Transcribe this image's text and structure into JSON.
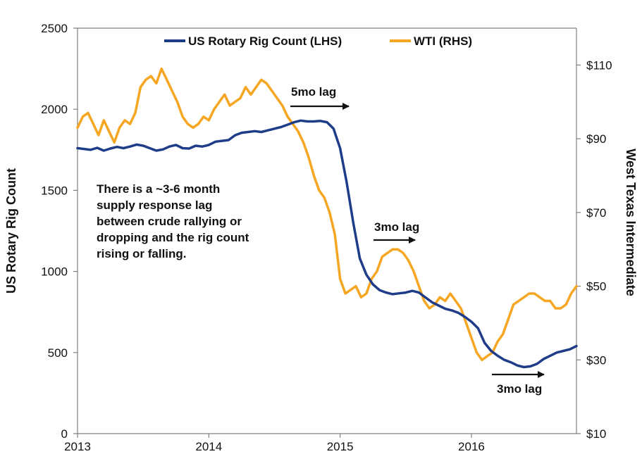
{
  "chart_data": {
    "type": "line",
    "title": "",
    "xlabel": "",
    "ylabel_left": "US Rotary Rig Count",
    "ylabel_right": "West Texas Intermediate",
    "x_ticks": [
      "2013",
      "2014",
      "2015",
      "2016"
    ],
    "xlim": [
      2013.0,
      2016.8
    ],
    "ylim_left": [
      0,
      2500
    ],
    "y_ticks_left": [
      "0",
      "500",
      "1000",
      "1500",
      "2000",
      "2500"
    ],
    "ylim_right": [
      10,
      120
    ],
    "y_ticks_right": [
      "$10",
      "$30",
      "$50",
      "$70",
      "$90",
      "$110"
    ],
    "y_ticks_right_values": [
      10,
      30,
      50,
      70,
      90,
      110
    ],
    "grid": false,
    "legend": {
      "placement": "top",
      "entries": [
        "US Rotary Rig Count (LHS)",
        "WTI (RHS)"
      ]
    },
    "colors": {
      "rig": "#1f3c88",
      "wti": "#f5a623",
      "axis": "#808080",
      "text": "#111111"
    },
    "series": [
      {
        "name": "US Rotary Rig Count (LHS)",
        "axis": "left",
        "color": "#1f3c88",
        "x": [
          2013.0,
          2013.05,
          2013.1,
          2013.15,
          2013.2,
          2013.25,
          2013.3,
          2013.35,
          2013.4,
          2013.45,
          2013.5,
          2013.55,
          2013.6,
          2013.65,
          2013.7,
          2013.75,
          2013.8,
          2013.85,
          2013.9,
          2013.95,
          2014.0,
          2014.05,
          2014.1,
          2014.15,
          2014.2,
          2014.25,
          2014.3,
          2014.35,
          2014.4,
          2014.45,
          2014.5,
          2014.55,
          2014.6,
          2014.65,
          2014.7,
          2014.75,
          2014.8,
          2014.85,
          2014.9,
          2014.95,
          2015.0,
          2015.05,
          2015.1,
          2015.15,
          2015.2,
          2015.25,
          2015.3,
          2015.35,
          2015.4,
          2015.45,
          2015.5,
          2015.55,
          2015.6,
          2015.65,
          2015.7,
          2015.75,
          2015.8,
          2015.85,
          2015.9,
          2015.95,
          2016.0,
          2016.05,
          2016.1,
          2016.15,
          2016.2,
          2016.25,
          2016.3,
          2016.35,
          2016.4,
          2016.45,
          2016.5,
          2016.55,
          2016.6,
          2016.65,
          2016.7,
          2016.75,
          2016.8
        ],
        "values": [
          1760,
          1755,
          1750,
          1762,
          1745,
          1758,
          1768,
          1760,
          1770,
          1782,
          1775,
          1760,
          1745,
          1752,
          1770,
          1780,
          1760,
          1758,
          1775,
          1770,
          1780,
          1800,
          1805,
          1810,
          1840,
          1855,
          1860,
          1865,
          1860,
          1870,
          1880,
          1890,
          1905,
          1920,
          1930,
          1925,
          1925,
          1928,
          1920,
          1880,
          1760,
          1550,
          1300,
          1080,
          980,
          920,
          885,
          870,
          860,
          865,
          870,
          880,
          870,
          840,
          810,
          790,
          770,
          760,
          745,
          720,
          690,
          650,
          560,
          510,
          480,
          455,
          440,
          420,
          410,
          415,
          430,
          460,
          480,
          500,
          510,
          520,
          540
        ]
      },
      {
        "name": "WTI (RHS)",
        "axis": "right",
        "color": "#f5a623",
        "x": [
          2013.0,
          2013.04,
          2013.08,
          2013.12,
          2013.16,
          2013.2,
          2013.24,
          2013.28,
          2013.32,
          2013.36,
          2013.4,
          2013.44,
          2013.48,
          2013.52,
          2013.56,
          2013.6,
          2013.64,
          2013.68,
          2013.72,
          2013.76,
          2013.8,
          2013.84,
          2013.88,
          2013.92,
          2013.96,
          2014.0,
          2014.04,
          2014.08,
          2014.12,
          2014.16,
          2014.2,
          2014.24,
          2014.28,
          2014.32,
          2014.36,
          2014.4,
          2014.44,
          2014.48,
          2014.52,
          2014.56,
          2014.6,
          2014.64,
          2014.68,
          2014.72,
          2014.76,
          2014.8,
          2014.84,
          2014.88,
          2014.92,
          2014.96,
          2015.0,
          2015.04,
          2015.08,
          2015.12,
          2015.16,
          2015.2,
          2015.24,
          2015.28,
          2015.32,
          2015.36,
          2015.4,
          2015.44,
          2015.48,
          2015.52,
          2015.56,
          2015.6,
          2015.64,
          2015.68,
          2015.72,
          2015.76,
          2015.8,
          2015.84,
          2015.88,
          2015.92,
          2015.96,
          2016.0,
          2016.04,
          2016.08,
          2016.12,
          2016.16,
          2016.2,
          2016.24,
          2016.28,
          2016.32,
          2016.36,
          2016.4,
          2016.44,
          2016.48,
          2016.52,
          2016.56,
          2016.6,
          2016.64,
          2016.68,
          2016.72,
          2016.76,
          2016.8
        ],
        "values": [
          93,
          96,
          97,
          94,
          91,
          95,
          92,
          89,
          93,
          95,
          94,
          97,
          104,
          106,
          107,
          105,
          109,
          106,
          103,
          100,
          96,
          94,
          93,
          94,
          96,
          95,
          98,
          100,
          102,
          99,
          100,
          101,
          104,
          102,
          104,
          106,
          105,
          103,
          101,
          99,
          96,
          94,
          92,
          89,
          85,
          80,
          76,
          74,
          70,
          64,
          52,
          48,
          49,
          50,
          47,
          48,
          52,
          54,
          58,
          59,
          60,
          60,
          59,
          57,
          54,
          50,
          46,
          44,
          45,
          47,
          46,
          48,
          46,
          44,
          40,
          36,
          32,
          30,
          31,
          32,
          35,
          37,
          41,
          45,
          46,
          47,
          48,
          48,
          47,
          46,
          46,
          44,
          44,
          45,
          48,
          50
        ]
      }
    ],
    "annotations": [
      {
        "id": "note",
        "lines": [
          "There is a ~3-6 month",
          "supply response lag",
          "between crude rallying or",
          "dropping and the rig count",
          "rising or falling."
        ]
      },
      {
        "id": "lag1",
        "text": "5mo lag"
      },
      {
        "id": "lag2",
        "text": "3mo lag"
      },
      {
        "id": "lag3",
        "text": "3mo lag"
      }
    ]
  }
}
